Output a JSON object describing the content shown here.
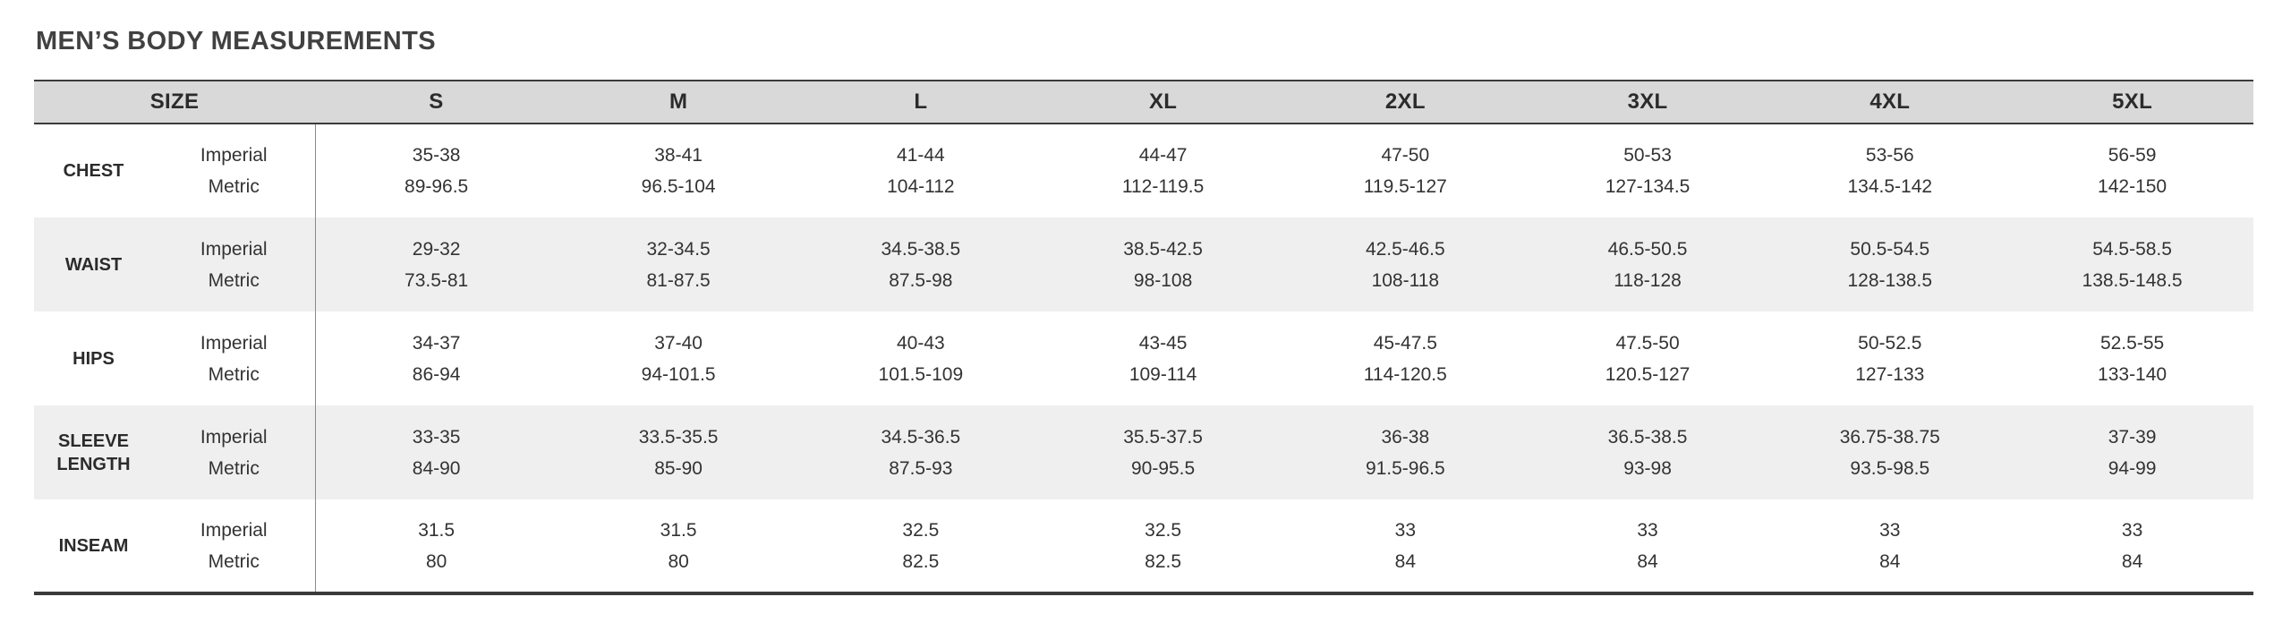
{
  "page_title": "MEN’S BODY MEASUREMENTS",
  "table": {
    "size_header_label": "SIZE",
    "size_columns": [
      "S",
      "M",
      "L",
      "XL",
      "2XL",
      "3XL",
      "4XL",
      "5XL"
    ],
    "unit_row_labels": {
      "imperial": "Imperial",
      "metric": "Metric"
    },
    "rows": [
      {
        "label": "CHEST",
        "imperial": [
          "35-38",
          "38-41",
          "41-44",
          "44-47",
          "47-50",
          "50-53",
          "53-56",
          "56-59"
        ],
        "metric": [
          "89-96.5",
          "96.5-104",
          "104-112",
          "112-119.5",
          "119.5-127",
          "127-134.5",
          "134.5-142",
          "142-150"
        ]
      },
      {
        "label": "WAIST",
        "imperial": [
          "29-32",
          "32-34.5",
          "34.5-38.5",
          "38.5-42.5",
          "42.5-46.5",
          "46.5-50.5",
          "50.5-54.5",
          "54.5-58.5"
        ],
        "metric": [
          "73.5-81",
          "81-87.5",
          "87.5-98",
          "98-108",
          "108-118",
          "118-128",
          "128-138.5",
          "138.5-148.5"
        ]
      },
      {
        "label": "HIPS",
        "imperial": [
          "34-37",
          "37-40",
          "40-43",
          "43-45",
          "45-47.5",
          "47.5-50",
          "50-52.5",
          "52.5-55"
        ],
        "metric": [
          "86-94",
          "94-101.5",
          "101.5-109",
          "109-114",
          "114-120.5",
          "120.5-127",
          "127-133",
          "133-140"
        ]
      },
      {
        "label": "SLEEVE LENGTH",
        "imperial": [
          "33-35",
          "33.5-35.5",
          "34.5-36.5",
          "35.5-37.5",
          "36-38",
          "36.5-38.5",
          "36.75-38.75",
          "37-39"
        ],
        "metric": [
          "84-90",
          "85-90",
          "87.5-93",
          "90-95.5",
          "91.5-96.5",
          "93-98",
          "93.5-98.5",
          "94-99"
        ]
      },
      {
        "label": "INSEAM",
        "imperial": [
          "31.5",
          "31.5",
          "32.5",
          "32.5",
          "33",
          "33",
          "33",
          "33"
        ],
        "metric": [
          "80",
          "80",
          "82.5",
          "82.5",
          "84",
          "84",
          "84",
          "84"
        ]
      }
    ]
  },
  "colors": {
    "header_background": "#d9d9d9",
    "alternate_row_background": "#efefef",
    "border_dark": "#3b3b3b",
    "divider_grey": "#8a8a8a",
    "text_primary": "#333333",
    "title_text": "#414141"
  }
}
